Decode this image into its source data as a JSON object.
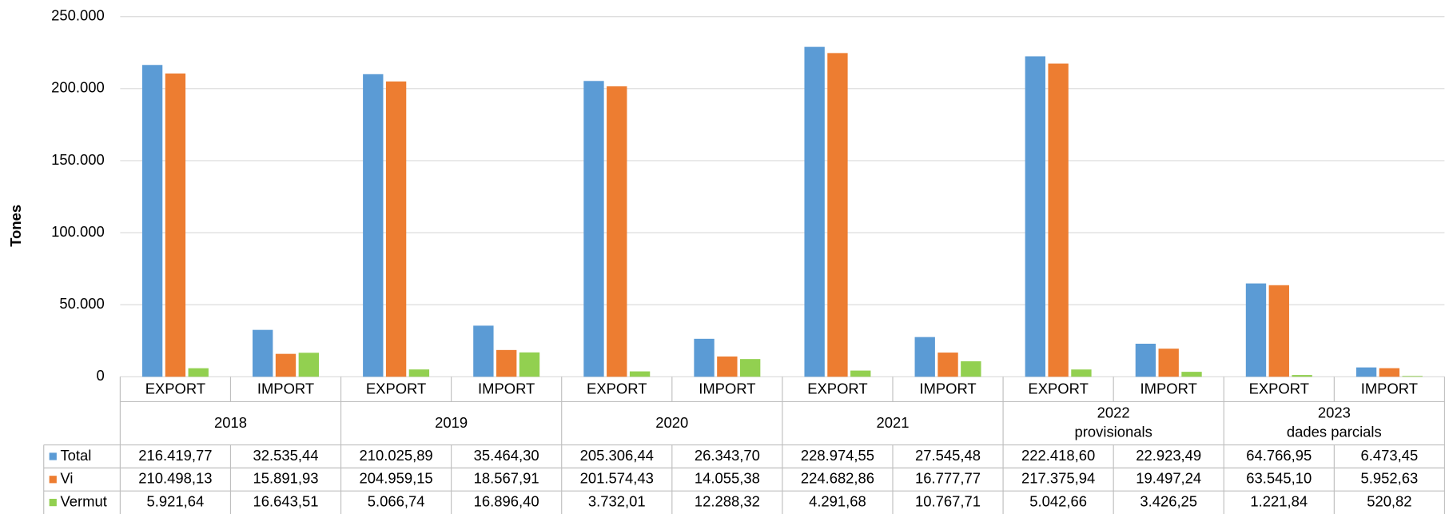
{
  "chart_data": {
    "type": "bar",
    "y_label": "Tones",
    "categories": [
      "EXPORT",
      "IMPORT",
      "EXPORT",
      "IMPORT",
      "EXPORT",
      "IMPORT",
      "EXPORT",
      "IMPORT",
      "EXPORT",
      "IMPORT",
      "EXPORT",
      "IMPORT"
    ],
    "groups": [
      [
        "2018"
      ],
      [
        "2019"
      ],
      [
        "2020"
      ],
      [
        "2021"
      ],
      [
        "2022",
        "provisionals"
      ],
      [
        "2023",
        "dades parcials"
      ]
    ],
    "series": [
      {
        "name": "Total",
        "color": "#5b9bd5",
        "values": [
          216419.77,
          32535.44,
          210025.89,
          35464.3,
          205306.44,
          26343.7,
          228974.55,
          27545.48,
          222418.6,
          22923.49,
          64766.95,
          6473.45
        ],
        "value_labels": [
          "216.419,77",
          "32.535,44",
          "210.025,89",
          "35.464,30",
          "205.306,44",
          "26.343,70",
          "228.974,55",
          "27.545,48",
          "222.418,60",
          "22.923,49",
          "64.766,95",
          "6.473,45"
        ]
      },
      {
        "name": "Vi",
        "color": "#ed7d31",
        "values": [
          210498.13,
          15891.93,
          204959.15,
          18567.91,
          201574.43,
          14055.38,
          224682.86,
          16777.77,
          217375.94,
          19497.24,
          63545.1,
          5952.63
        ],
        "value_labels": [
          "210.498,13",
          "15.891,93",
          "204.959,15",
          "18.567,91",
          "201.574,43",
          "14.055,38",
          "224.682,86",
          "16.777,77",
          "217.375,94",
          "19.497,24",
          "63.545,10",
          "5.952,63"
        ]
      },
      {
        "name": "Vermut",
        "color": "#92d050",
        "values": [
          5921.64,
          16643.51,
          5066.74,
          16896.4,
          3732.01,
          12288.32,
          4291.68,
          10767.71,
          5042.66,
          3426.25,
          1221.84,
          520.82
        ],
        "value_labels": [
          "5.921,64",
          "16.643,51",
          "5.066,74",
          "16.896,40",
          "3.732,01",
          "12.288,32",
          "4.291,68",
          "10.767,71",
          "5.042,66",
          "3.426,25",
          "1.221,84",
          "520,82"
        ]
      }
    ],
    "ylim": [
      0,
      250000
    ],
    "yticks": [
      0,
      {
        "value": 50000,
        "label": "50.000"
      },
      {
        "value": 100000,
        "label": "100.000"
      },
      {
        "value": 150000,
        "label": "150.000"
      },
      {
        "value": 200000,
        "label": "200.000"
      },
      {
        "value": 250000,
        "label": "250.000"
      }
    ],
    "grid": true
  }
}
